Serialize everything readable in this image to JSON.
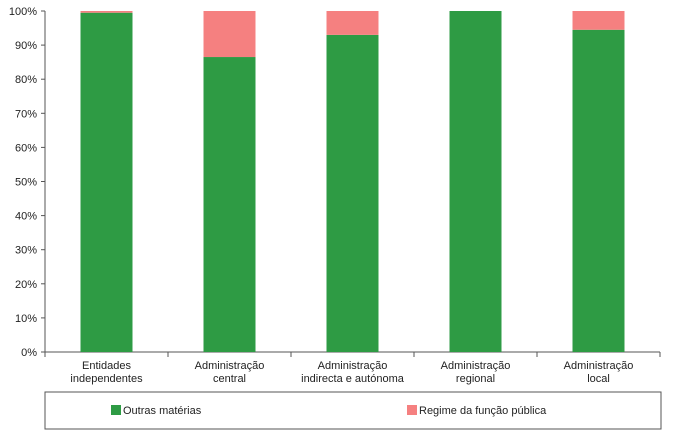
{
  "chart_data": {
    "type": "bar",
    "stacked": true,
    "percent": true,
    "categories": [
      [
        "Entidades",
        "independentes"
      ],
      [
        "Administração",
        "central"
      ],
      [
        "Administração",
        "indirecta e autónoma"
      ],
      [
        "Administração",
        "regional"
      ],
      [
        "Administração",
        "local"
      ]
    ],
    "series": [
      {
        "name": "Outras matérias",
        "color": "#2e9b44",
        "values": [
          99.5,
          86.5,
          93.0,
          100.0,
          94.5
        ]
      },
      {
        "name": "Regime da função pública",
        "color": "#f58080",
        "values": [
          0.5,
          13.5,
          7.0,
          0.0,
          5.5
        ]
      }
    ],
    "ylim": [
      0,
      100
    ],
    "yticks": [
      "0%",
      "10%",
      "20%",
      "30%",
      "40%",
      "50%",
      "60%",
      "70%",
      "80%",
      "90%",
      "100%"
    ],
    "grid": false,
    "legend_position": "bottom",
    "title": "",
    "xlabel": "",
    "ylabel": ""
  }
}
